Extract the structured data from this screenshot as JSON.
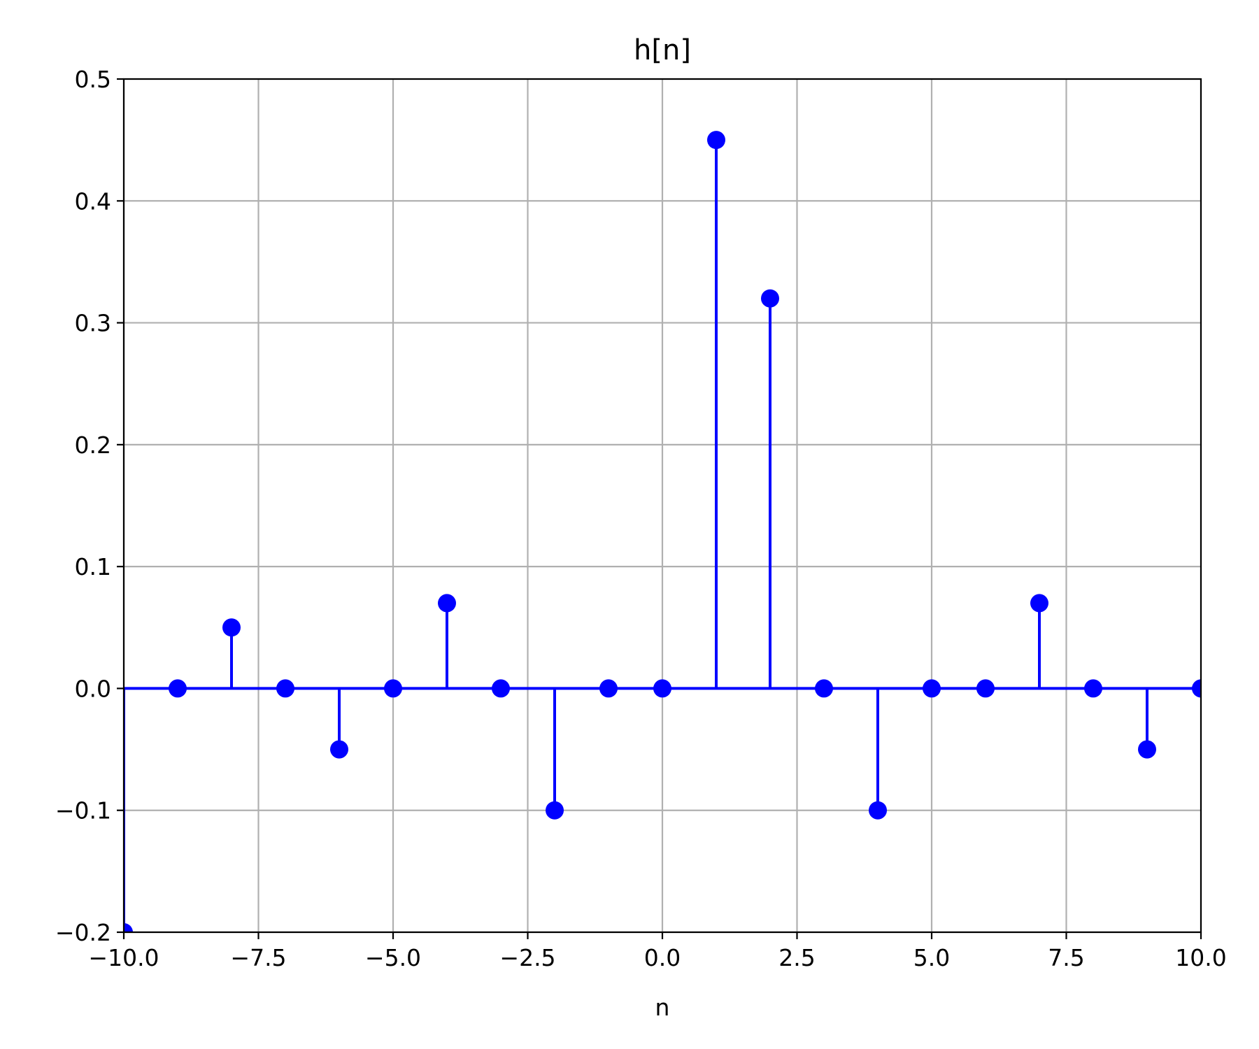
{
  "chart_data": {
    "type": "stem",
    "title": "h[n]",
    "xlabel": "n",
    "ylabel": "",
    "xlim": [
      -10,
      10
    ],
    "ylim": [
      -0.2,
      0.5
    ],
    "x_ticks": [
      -10.0,
      -7.5,
      -5.0,
      -2.5,
      0.0,
      2.5,
      5.0,
      7.5,
      10.0
    ],
    "x_tick_labels": [
      "−10.0",
      "−7.5",
      "−5.0",
      "−2.5",
      "0.0",
      "2.5",
      "5.0",
      "7.5",
      "10.0"
    ],
    "y_ticks": [
      -0.2,
      -0.1,
      0.0,
      0.1,
      0.2,
      0.3,
      0.4,
      0.5
    ],
    "y_tick_labels": [
      "−0.2",
      "−0.1",
      "0.0",
      "0.1",
      "0.2",
      "0.3",
      "0.4",
      "0.5"
    ],
    "grid": true,
    "baseline": 0,
    "color": "#0000ff",
    "x": [
      -10,
      -9,
      -8,
      -7,
      -6,
      -5,
      -4,
      -3,
      -2,
      -1,
      0,
      1,
      2,
      3,
      4,
      5,
      6,
      7,
      8,
      9,
      10
    ],
    "y": [
      -0.2,
      0,
      0.05,
      0,
      -0.05,
      0,
      0.07,
      0,
      -0.1,
      0,
      0,
      0.45,
      0.32,
      0,
      -0.1,
      0,
      0,
      0.07,
      0,
      -0.05,
      0
    ]
  }
}
